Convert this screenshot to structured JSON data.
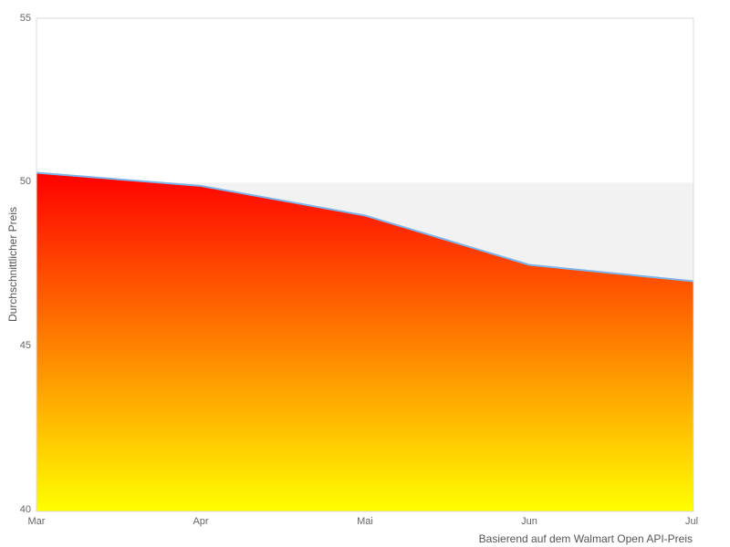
{
  "chart_data": {
    "type": "area",
    "categories": [
      "Mar",
      "Apr",
      "Mai",
      "Jun",
      "Jul"
    ],
    "values": [
      50.3,
      49.9,
      49.0,
      47.5,
      47.0
    ],
    "ylabel": "Durchschnittlicher Preis",
    "ylim": [
      40,
      55
    ],
    "y_tick_step": 5,
    "y_tick_labels": [
      "55",
      "50",
      "45",
      "40"
    ],
    "caption": "Basierend auf dem Walmart Open API-Preis",
    "legend": "none",
    "plot_band": {
      "from": 45,
      "to": 50,
      "color": "#f2f2f2"
    },
    "colors": {
      "line": "#7cb5ec",
      "area_gradient_top": "#ff0000",
      "area_gradient_bottom": "#ffff00",
      "plot_border": "#d8d8d8",
      "tick_label": "#666666",
      "axis_title": "#555555"
    }
  }
}
